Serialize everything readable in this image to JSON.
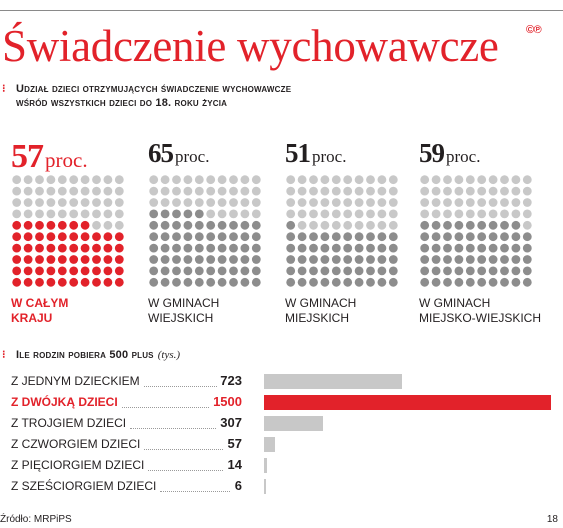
{
  "title": "Świadczenie wychowawcze",
  "logo": "©℗",
  "colors": {
    "accent": "#e2222a",
    "gray_dot": "#c8c8c8",
    "gray_bar": "#c8c8c8",
    "text": "#231f20"
  },
  "section1": {
    "subtitle": "Udział dzieci otrzymujących świadczenie wychowawcze",
    "subtitle2": "wśród wszystkich dzieci do 18. roku życia"
  },
  "section2": {
    "subtitle": "Ile rodzin pobiera 500 plus",
    "unit": "(tys.)"
  },
  "source": "Źródło: MRPiPS",
  "page_number": "18",
  "chart_data": [
    {
      "type": "waffle",
      "title": "Udział dzieci otrzymujących świadczenie wychowawcze wśród wszystkich dzieci do 18. roku życia",
      "unit": "proc.",
      "grid": {
        "rows": 10,
        "cols": 10
      },
      "categories": [
        "W CAŁYM KRAJU",
        "W GMINACH WIEJSKICH",
        "W GMINACH MIEJSKICH",
        "W GMINACH MIEJSKO-WIEJSKICH"
      ],
      "values": [
        57,
        65,
        51,
        59
      ],
      "highlight_index": 0
    },
    {
      "type": "bar",
      "orientation": "horizontal",
      "title": "Ile rodzin pobiera 500 plus",
      "unit": "(tys.)",
      "categories": [
        "Z JEDNYM DZIECKIEM",
        "Z DWÓJKĄ DZIECI",
        "Z TROJGIEM DZIECI",
        "Z CZWORGIEM DZIECI",
        "Z PIĘCIORGIEM DZIECI",
        "Z SZEŚCIORGIEM DZIECI"
      ],
      "values": [
        723,
        1500,
        307,
        57,
        14,
        6
      ],
      "xlim": [
        0,
        1500
      ],
      "highlight_index": 1
    }
  ]
}
